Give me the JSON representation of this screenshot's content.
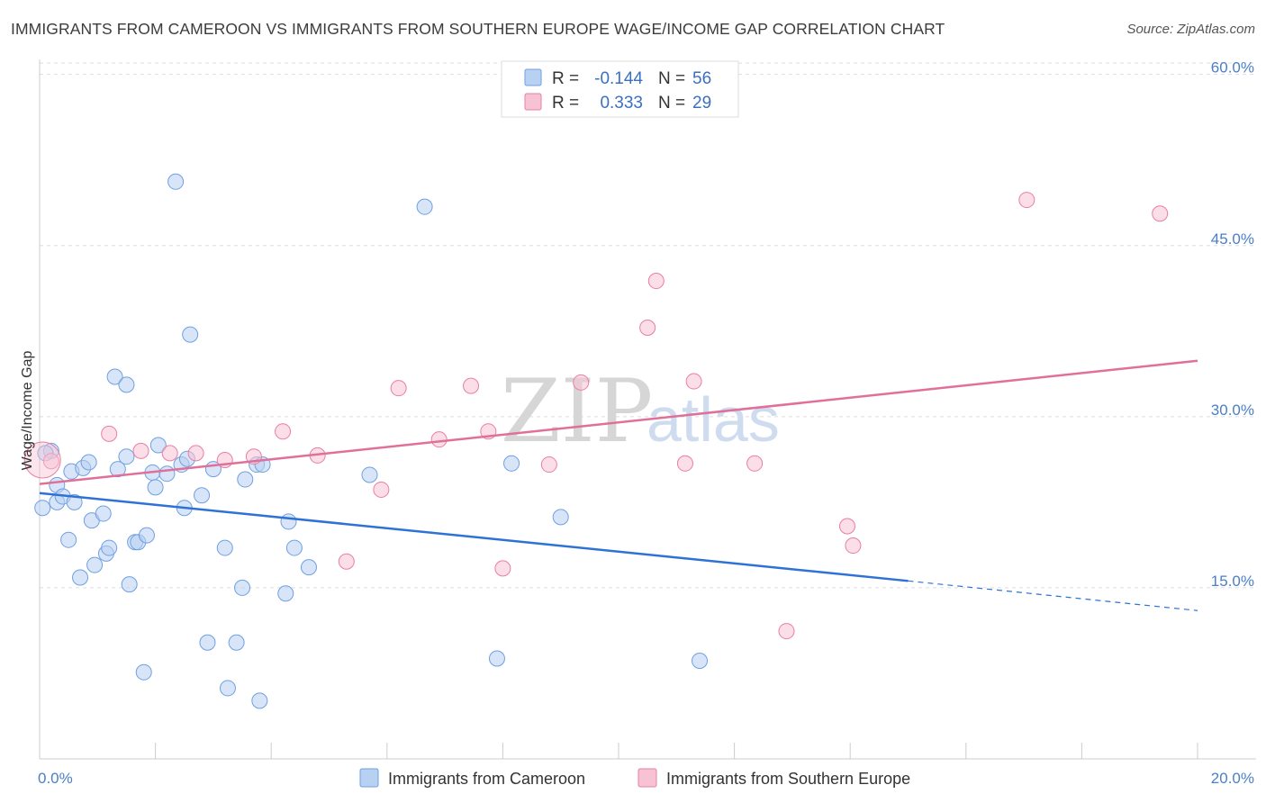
{
  "title": "IMMIGRANTS FROM CAMEROON VS IMMIGRANTS FROM SOUTHERN EUROPE WAGE/INCOME GAP CORRELATION CHART",
  "source": "Source: ZipAtlas.com",
  "watermark": {
    "zip": "ZIP",
    "atlas": "atlas"
  },
  "chart_data": {
    "type": "scatter",
    "ylabel": "Wage/Income Gap",
    "xlim": [
      0,
      20
    ],
    "ylim": [
      0,
      61
    ],
    "x_tick_labels": [
      {
        "value": 0,
        "label": "0.0%"
      },
      {
        "value": 20,
        "label": "20.0%"
      }
    ],
    "y_tick_labels": [
      {
        "value": 15,
        "label": "15.0%"
      },
      {
        "value": 30,
        "label": "30.0%"
      },
      {
        "value": 45,
        "label": "45.0%"
      },
      {
        "value": 60,
        "label": "60.0%"
      }
    ],
    "legend": [
      {
        "r_label": "R =",
        "r_value": "-0.144",
        "n_label": "N =",
        "n_value": "56"
      },
      {
        "r_label": "R =",
        "r_value": "0.333",
        "n_label": "N =",
        "n_value": "29"
      }
    ],
    "series": [
      {
        "name": "Immigrants from Cameroon",
        "color": "#6fa0e0",
        "fill": "#b8d0f2",
        "trend": {
          "x0": 0,
          "y0": 23.3,
          "x1": 15.0,
          "y1": 15.6,
          "dash_to_x": 20,
          "dash_to_y": 13.0
        },
        "points": [
          [
            0.05,
            22.0
          ],
          [
            0.2,
            27.0
          ],
          [
            0.3,
            24.0
          ],
          [
            0.3,
            22.5
          ],
          [
            0.4,
            23.0
          ],
          [
            0.5,
            19.2
          ],
          [
            0.55,
            25.2
          ],
          [
            0.6,
            22.5
          ],
          [
            0.7,
            15.9
          ],
          [
            0.75,
            25.5
          ],
          [
            0.85,
            26.0
          ],
          [
            0.9,
            20.9
          ],
          [
            0.95,
            17.0
          ],
          [
            1.1,
            21.5
          ],
          [
            1.15,
            18.0
          ],
          [
            1.2,
            18.5
          ],
          [
            1.3,
            33.5
          ],
          [
            1.35,
            25.4
          ],
          [
            1.5,
            26.5
          ],
          [
            1.5,
            32.8
          ],
          [
            1.55,
            15.3
          ],
          [
            1.65,
            19.0
          ],
          [
            1.7,
            19.0
          ],
          [
            1.8,
            7.6
          ],
          [
            1.85,
            19.6
          ],
          [
            1.95,
            25.1
          ],
          [
            2.0,
            23.8
          ],
          [
            2.05,
            27.5
          ],
          [
            2.2,
            25.0
          ],
          [
            2.35,
            50.6
          ],
          [
            2.45,
            25.8
          ],
          [
            2.5,
            22.0
          ],
          [
            2.55,
            26.3
          ],
          [
            2.6,
            37.2
          ],
          [
            2.8,
            23.1
          ],
          [
            2.9,
            10.2
          ],
          [
            3.0,
            25.4
          ],
          [
            3.2,
            18.5
          ],
          [
            3.25,
            6.2
          ],
          [
            3.4,
            10.2
          ],
          [
            3.5,
            15.0
          ],
          [
            3.55,
            24.5
          ],
          [
            3.75,
            25.8
          ],
          [
            3.8,
            5.1
          ],
          [
            3.85,
            25.8
          ],
          [
            4.25,
            14.5
          ],
          [
            4.3,
            20.8
          ],
          [
            4.4,
            18.5
          ],
          [
            4.65,
            16.8
          ],
          [
            5.7,
            24.9
          ],
          [
            6.65,
            48.4
          ],
          [
            7.9,
            8.8
          ],
          [
            8.15,
            25.9
          ],
          [
            9.0,
            21.2
          ],
          [
            11.4,
            8.6
          ],
          [
            0.1,
            26.8
          ]
        ]
      },
      {
        "name": "Immigrants from Southern Europe",
        "color": "#e87fa2",
        "fill": "#f7c3d4",
        "trend": {
          "x0": 0,
          "y0": 24.1,
          "x1": 20,
          "y1": 34.9
        },
        "points": [
          [
            0.2,
            26.1
          ],
          [
            1.2,
            28.5
          ],
          [
            1.75,
            27.0
          ],
          [
            2.25,
            26.8
          ],
          [
            2.7,
            26.8
          ],
          [
            3.2,
            26.2
          ],
          [
            3.7,
            26.5
          ],
          [
            4.2,
            28.7
          ],
          [
            4.8,
            26.6
          ],
          [
            5.3,
            17.3
          ],
          [
            5.9,
            23.6
          ],
          [
            6.2,
            32.5
          ],
          [
            6.9,
            28.0
          ],
          [
            7.45,
            32.7
          ],
          [
            7.75,
            28.7
          ],
          [
            8.0,
            16.7
          ],
          [
            8.8,
            25.8
          ],
          [
            9.35,
            33.0
          ],
          [
            10.5,
            37.8
          ],
          [
            10.65,
            41.9
          ],
          [
            11.15,
            25.9
          ],
          [
            11.3,
            33.1
          ],
          [
            12.35,
            25.9
          ],
          [
            12.9,
            11.2
          ],
          [
            13.95,
            20.4
          ],
          [
            14.05,
            18.7
          ],
          [
            17.05,
            49.0
          ],
          [
            19.35,
            47.8
          ]
        ]
      }
    ],
    "large_points": [
      {
        "series": 1,
        "x": 0.05,
        "y": 26.2
      }
    ]
  }
}
